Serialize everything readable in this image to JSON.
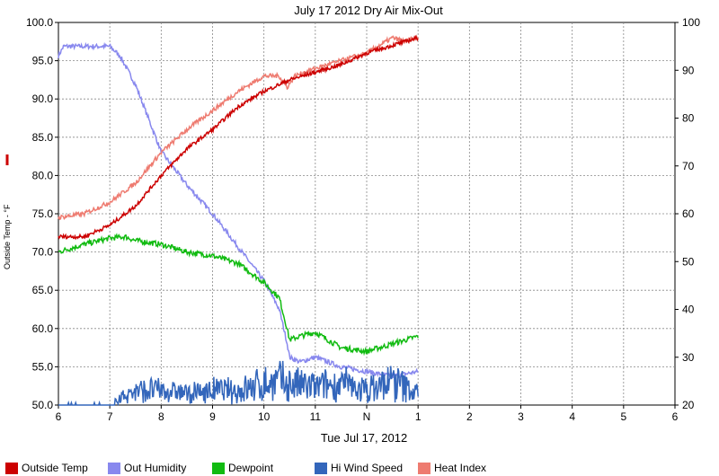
{
  "colors": {
    "outside_temp": "#cc0000",
    "out_humidity": "#8888ee",
    "dewpoint": "#11bb11",
    "hi_wind_speed": "#3366bb",
    "heat_index": "#ee7b70"
  },
  "chart_data": {
    "type": "line",
    "title": "July 17 2012 Dry Air Mix-Out",
    "xlabel": "Tue Jul 17, 2012",
    "ylabel_left": "Outside Temp - °F",
    "grid": true,
    "x_tick_labels": [
      "6",
      "7",
      "8",
      "9",
      "10",
      "11",
      "N",
      "1",
      "2",
      "3",
      "4",
      "5",
      "6"
    ],
    "x_unit": "hour of day",
    "xlim": [
      6,
      18
    ],
    "ylim_left": [
      50,
      100
    ],
    "ylim_right": [
      20,
      100
    ],
    "y_left_ticks": [
      "50.0",
      "55.0",
      "60.0",
      "65.0",
      "70.0",
      "75.0",
      "80.0",
      "85.0",
      "90.0",
      "95.0",
      "100.0"
    ],
    "y_right_ticks": [
      "20",
      "30",
      "40",
      "50",
      "60",
      "70",
      "80",
      "90",
      "100"
    ],
    "legend_position": "bottom",
    "series": [
      {
        "name": "Outside Temp",
        "axis": "left",
        "x": [
          6.0,
          6.5,
          7.0,
          7.5,
          8.0,
          8.5,
          9.0,
          9.5,
          10.0,
          10.5,
          11.0,
          11.5,
          12.0,
          12.5,
          13.0
        ],
        "y": [
          72.0,
          72.0,
          73.5,
          76.0,
          80.0,
          83.5,
          86.0,
          89.0,
          91.0,
          92.5,
          93.5,
          94.5,
          96.0,
          97.0,
          98.0
        ]
      },
      {
        "name": "Out Humidity",
        "axis": "right",
        "x": [
          6.0,
          6.1,
          7.0,
          7.2,
          7.5,
          8.0,
          8.5,
          9.0,
          9.5,
          10.0,
          10.3,
          10.45,
          10.5,
          10.7,
          11.0,
          11.5,
          12.0,
          12.5,
          13.0
        ],
        "y": [
          93,
          95,
          95,
          93,
          87,
          73,
          66,
          60,
          53,
          46,
          40,
          33,
          30,
          29,
          30,
          28,
          27,
          26,
          27
        ]
      },
      {
        "name": "Dewpoint",
        "axis": "left",
        "x": [
          6.0,
          6.5,
          7.0,
          7.3,
          7.5,
          8.0,
          8.5,
          9.0,
          9.5,
          10.0,
          10.3,
          10.45,
          10.5,
          10.7,
          11.0,
          11.5,
          12.0,
          12.5,
          13.0
        ],
        "y": [
          70.0,
          71.0,
          71.8,
          72.0,
          71.5,
          71.0,
          70.0,
          69.5,
          68.5,
          66.0,
          64.0,
          60.0,
          58.5,
          59.0,
          59.5,
          57.5,
          57.0,
          58.0,
          59.0
        ]
      },
      {
        "name": "Hi Wind Speed",
        "axis": "left",
        "x": [
          6.0,
          6.5,
          7.0,
          7.3,
          7.5,
          8.0,
          8.5,
          9.0,
          9.5,
          10.0,
          10.3,
          10.5,
          11.0,
          11.5,
          12.0,
          12.5,
          13.0
        ],
        "y": [
          50.0,
          50.0,
          50.3,
          51.0,
          52.0,
          52.0,
          51.5,
          52.0,
          52.0,
          53.0,
          53.5,
          53.0,
          52.5,
          53.0,
          52.0,
          53.5,
          51.5
        ]
      },
      {
        "name": "Heat Index",
        "axis": "left",
        "x": [
          6.0,
          6.5,
          7.0,
          7.5,
          8.0,
          8.5,
          9.0,
          9.5,
          10.0,
          10.3,
          10.45,
          10.6,
          11.0,
          11.5,
          12.0,
          12.5,
          12.75,
          13.0
        ],
        "y": [
          74.5,
          75.0,
          76.5,
          79.0,
          83.0,
          86.0,
          88.5,
          91.0,
          93.0,
          93.0,
          91.5,
          93.0,
          94.0,
          95.0,
          96.0,
          98.0,
          97.5,
          98.0
        ]
      }
    ]
  }
}
